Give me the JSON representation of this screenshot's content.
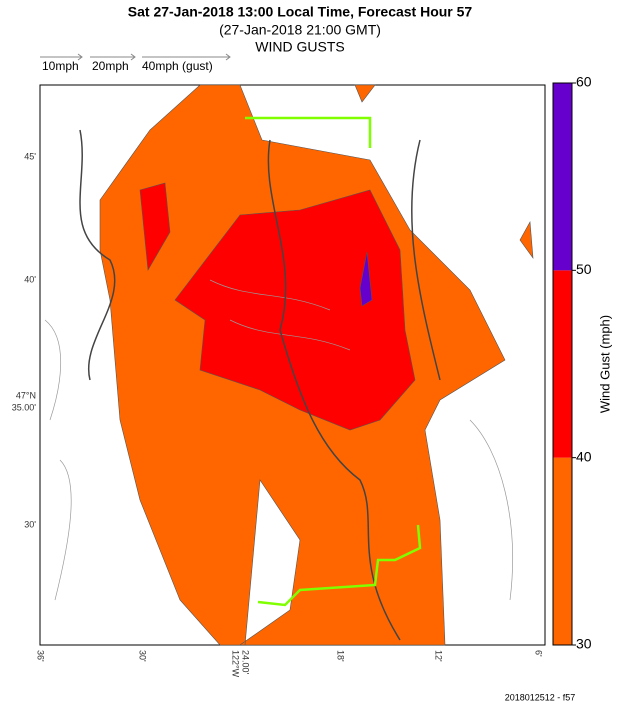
{
  "header": {
    "title": "Sat 27-Jan-2018 13:00 Local Time, Forecast Hour 57",
    "subtitle": "(27-Jan-2018 21:00 GMT)",
    "product": "WIND GUSTS"
  },
  "vector_legend": [
    "10mph",
    "20mph",
    "40mph (gust)"
  ],
  "colorbar": {
    "label": "Wind Gust (mph)",
    "ticks": [
      30,
      40,
      50,
      60
    ],
    "colors": [
      "#ff6600",
      "#ff0000",
      "#6600cc"
    ]
  },
  "axes": {
    "y_labels": [
      [
        "45'"
      ],
      [
        "40'"
      ],
      [
        "47°N",
        "35.00'"
      ],
      [
        "30'"
      ]
    ],
    "x_labels": [
      [
        "36'"
      ],
      [
        "30'"
      ],
      [
        "122°W",
        "24.00'"
      ],
      [
        "18'"
      ],
      [
        "12'"
      ],
      [
        "6'"
      ]
    ]
  },
  "footer": "2018012512 - f57"
}
